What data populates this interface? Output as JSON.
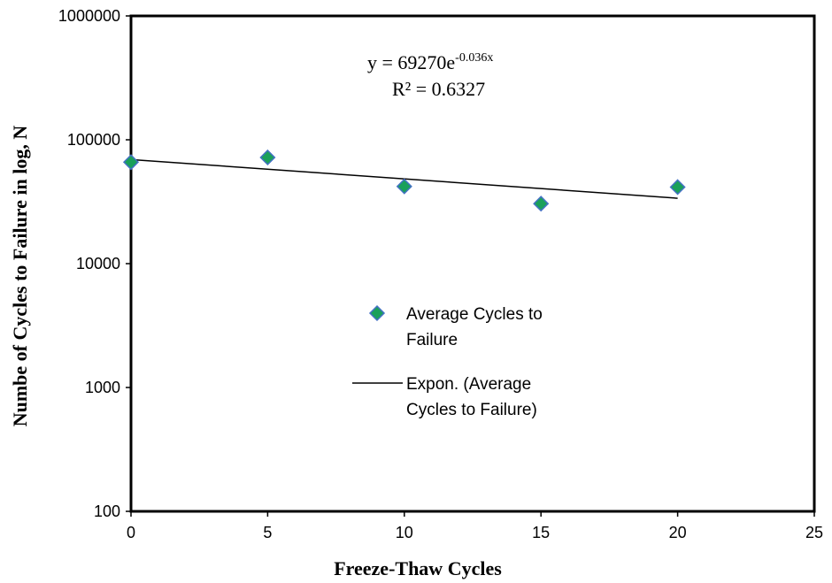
{
  "chart_data": {
    "type": "scatter",
    "xlabel": "Freeze-Thaw Cycles",
    "ylabel": "Numbe of Cycles to Failure in log, N",
    "xlim": [
      0,
      25
    ],
    "ylim": [
      100,
      1000000
    ],
    "yscale": "log",
    "x_ticks": [
      "0",
      "5",
      "10",
      "15",
      "20",
      "25"
    ],
    "y_ticks": [
      "100",
      "1000",
      "10000",
      "100000",
      "1000000"
    ],
    "series": [
      {
        "name": "Average Cycles to Failure",
        "marker": "diamond",
        "color": "#1aa05a",
        "edge_color": "#4472c4",
        "x": [
          0,
          5,
          10,
          15,
          20
        ],
        "y": [
          66000,
          72000,
          42000,
          30500,
          41500
        ]
      }
    ],
    "trendline": {
      "name": "Expon. (Average Cycles to Failure)",
      "type": "exponential",
      "a": 69270,
      "b": -0.036,
      "x_range": [
        0,
        20
      ],
      "color": "#000000"
    },
    "equation": {
      "prefix": "y = 69270e",
      "exponent": "-0.036x",
      "r2": "R² = 0.6327"
    },
    "legend": {
      "placement": "center",
      "entries": [
        [
          "Average Cycles to",
          "Failure"
        ],
        [
          "Expon. (Average",
          "Cycles to Failure)"
        ]
      ]
    },
    "grid": false
  }
}
